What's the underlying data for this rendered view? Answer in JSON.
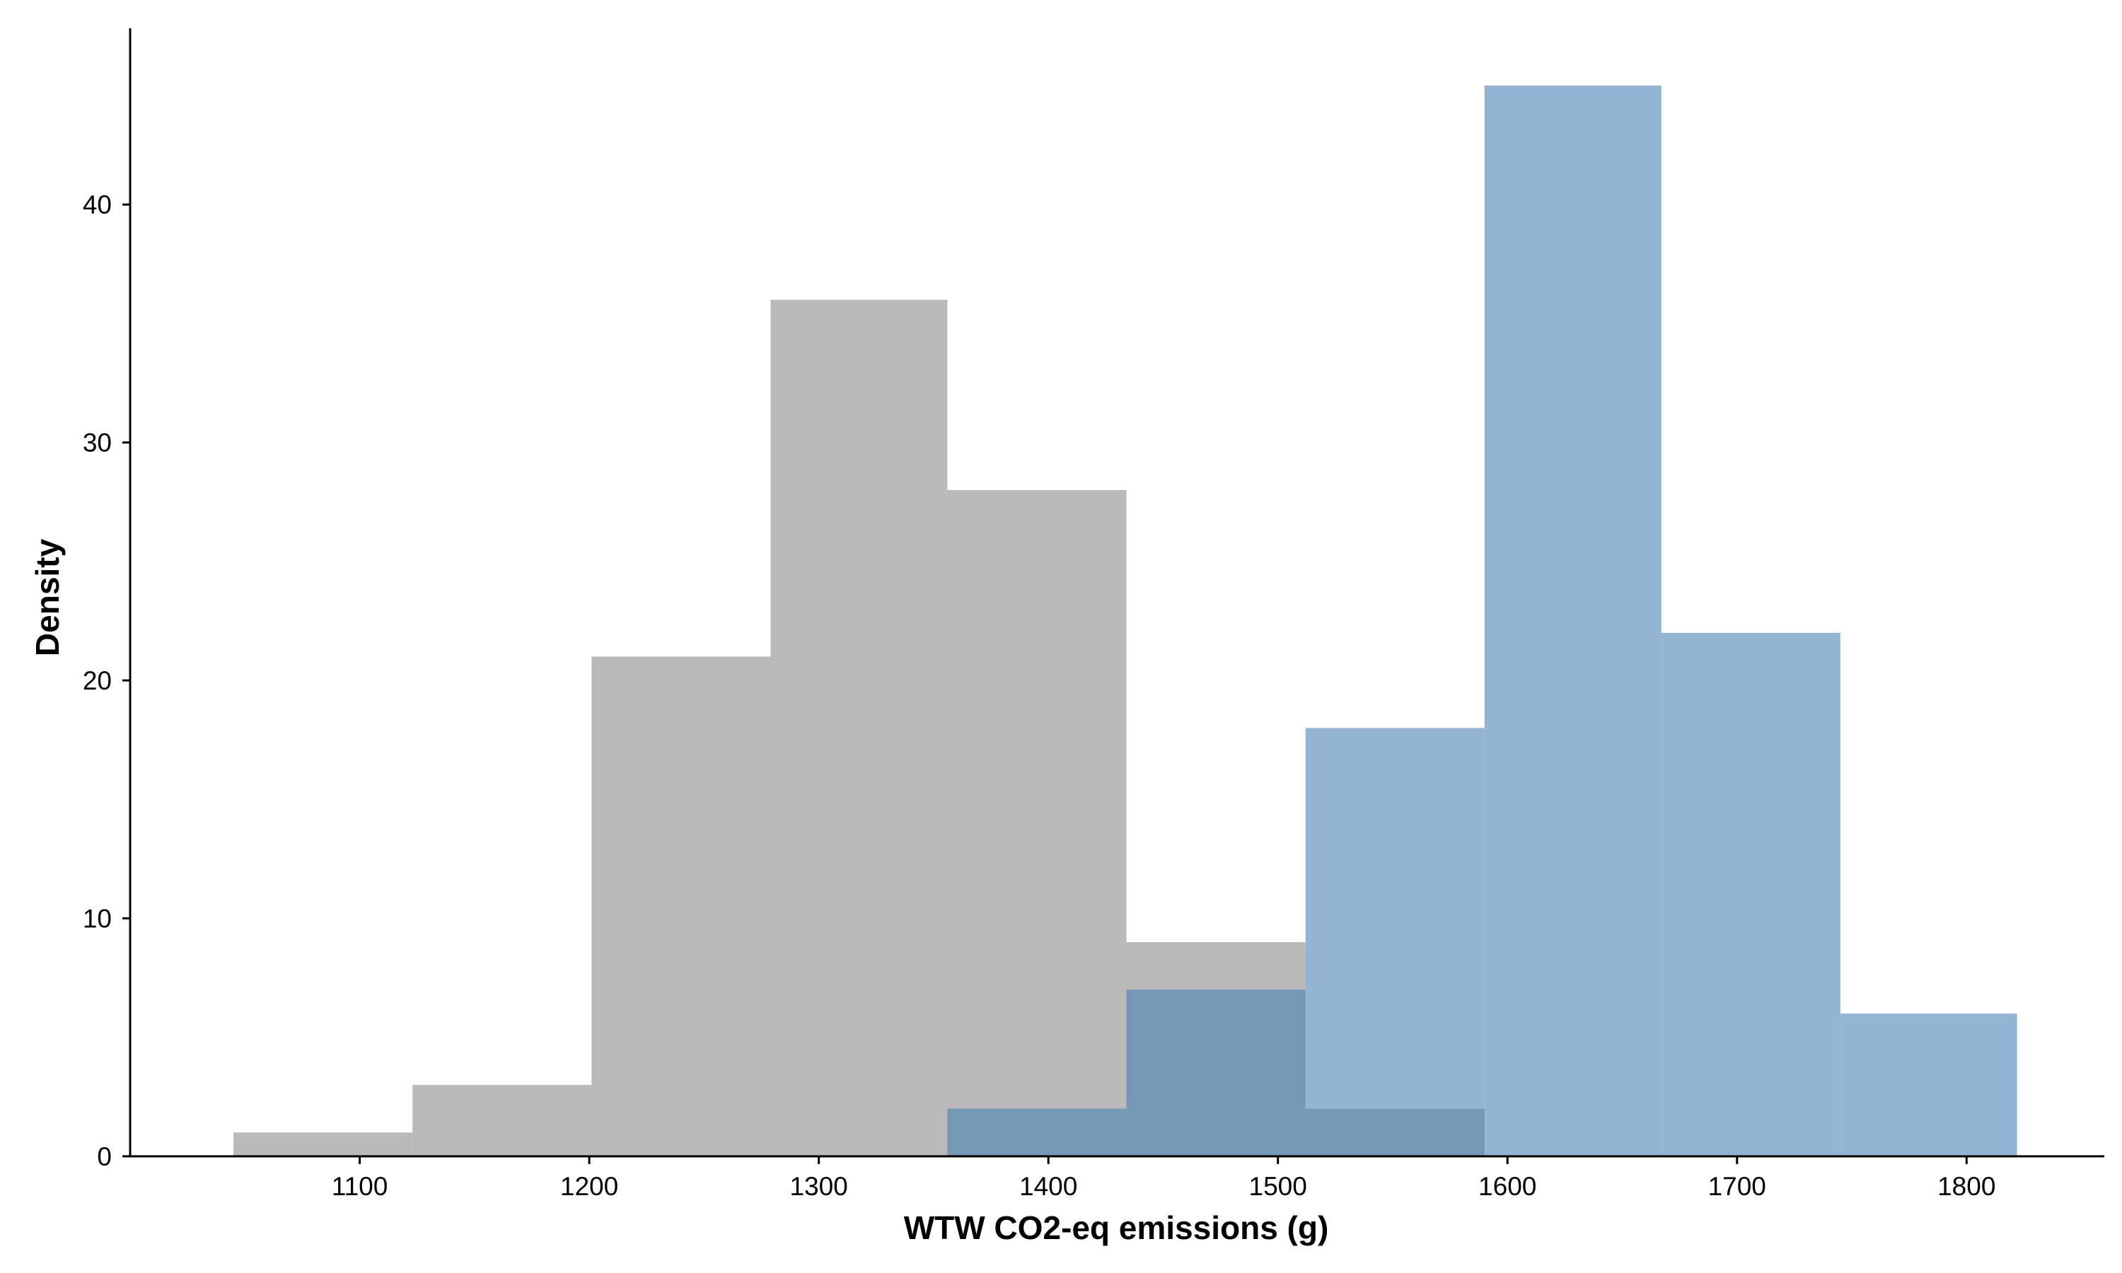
{
  "chart_data": {
    "type": "bar",
    "xlabel": "WTW CO2-eq emissions (g)",
    "ylabel": "Density",
    "xlim": [
      1000,
      1860
    ],
    "ylim": [
      0,
      45
    ],
    "xticks": [
      1100,
      1200,
      1300,
      1400,
      1500,
      1600,
      1700,
      1800
    ],
    "yticks": [
      0,
      10,
      20,
      30,
      40
    ],
    "grid": false,
    "legend": "none",
    "series": [
      {
        "color": "#b9b9b9",
        "bin_edges": [
          1045,
          1123,
          1201,
          1279,
          1356,
          1434,
          1512,
          1590
        ],
        "values": [
          1,
          3,
          21,
          36,
          28,
          9,
          2
        ]
      },
      {
        "color": "#93b4d3",
        "bin_edges": [
          1356,
          1434,
          1512,
          1590,
          1667,
          1745,
          1822
        ],
        "values": [
          2,
          7,
          18,
          45,
          22,
          6
        ]
      }
    ],
    "overlap_color": "#7598b7"
  }
}
